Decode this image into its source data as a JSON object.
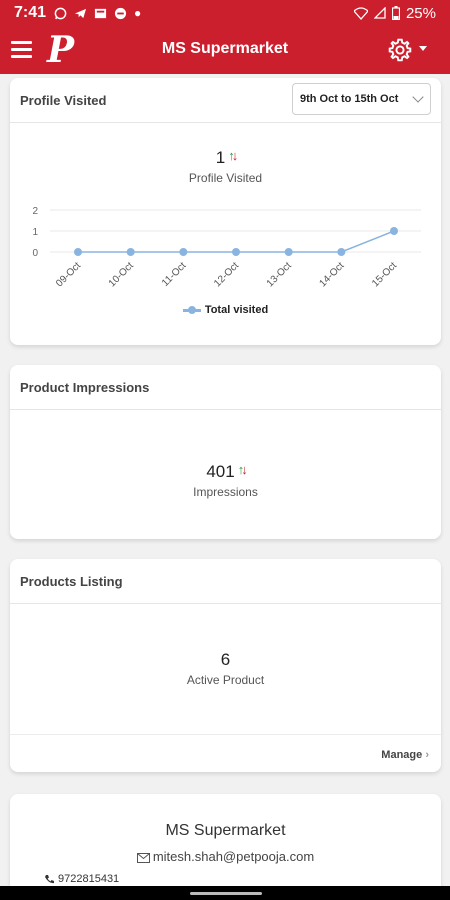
{
  "status_bar": {
    "time": "7:41",
    "battery": "25%",
    "icons": [
      "whatsapp-icon",
      "telegram-icon",
      "news-icon",
      "minus-circle-icon",
      "dot-icon",
      "wifi-icon",
      "signal-icon",
      "battery-icon"
    ]
  },
  "app_bar": {
    "logo": "P",
    "title": "MS Supermarket",
    "icons": [
      "menu-icon",
      "gear-icon",
      "caret-down-icon"
    ]
  },
  "profile_card": {
    "title": "Profile Visited",
    "date_range": "9th Oct to 15th Oct",
    "metric_value": "1",
    "metric_label": "Profile Visited",
    "legend": "Total visited"
  },
  "chart_data": {
    "type": "line",
    "categories": [
      "09-Oct",
      "10-Oct",
      "11-Oct",
      "12-Oct",
      "13-Oct",
      "14-Oct",
      "15-Oct"
    ],
    "series": [
      {
        "name": "Total visited",
        "values": [
          0,
          0,
          0,
          0,
          0,
          0,
          1
        ]
      }
    ],
    "yticks": [
      "0",
      "1",
      "2"
    ],
    "ylim": [
      0,
      2
    ],
    "grid": true,
    "legend_position": "bottom",
    "color": "#8ab4e0"
  },
  "impressions_card": {
    "title": "Product Impressions",
    "metric_value": "401",
    "metric_label": "Impressions"
  },
  "listing_card": {
    "title": "Products Listing",
    "metric_value": "6",
    "metric_label": "Active Product",
    "manage_label": "Manage"
  },
  "store_card": {
    "name": "MS Supermarket",
    "email": "mitesh.shah@petpooja.com",
    "phone": "9722815431"
  },
  "colors": {
    "brand": "#cc1f2e",
    "trend_up": "#2e9e3e",
    "trend_down": "#cc1f2e",
    "chart_line": "#8ab4e0"
  }
}
